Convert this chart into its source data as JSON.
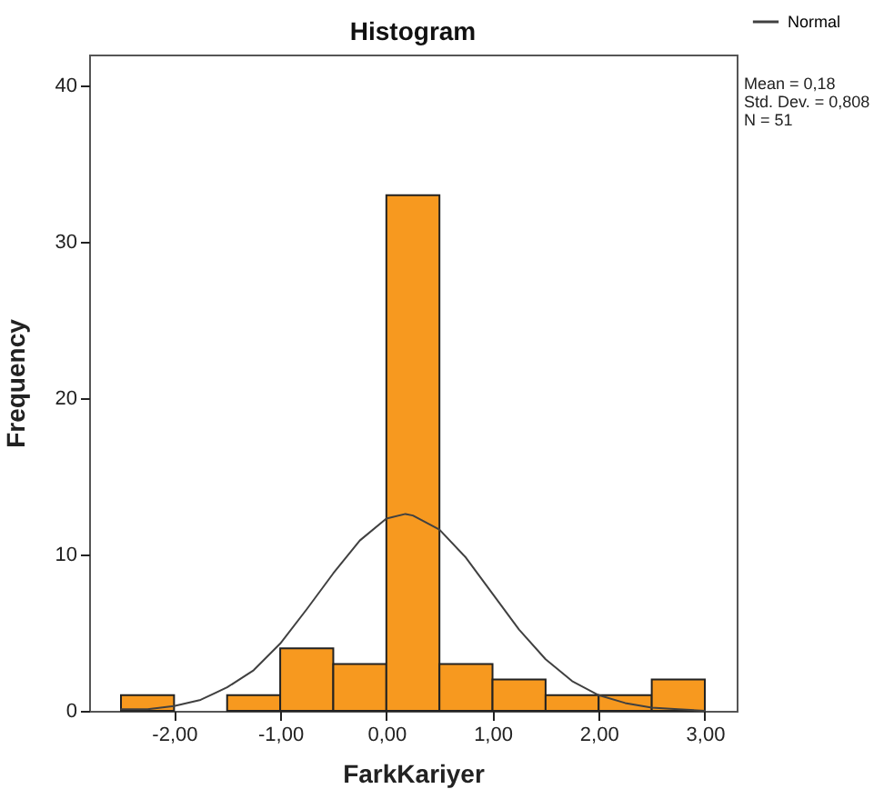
{
  "chart_data": {
    "type": "histogram",
    "title": "Histogram",
    "xlabel": "FarkKariyer",
    "ylabel": "Frequency",
    "bins": [
      -2.5,
      -2,
      -1.5,
      -1,
      -0.5,
      0,
      0.5,
      1,
      1.5,
      2,
      2.5,
      3
    ],
    "values": [
      1,
      0,
      1,
      4,
      3,
      33,
      3,
      2,
      1,
      1,
      2
    ],
    "color": "#f7991f",
    "series": [
      {
        "type": "line",
        "name": "Normal",
        "color": "#404040",
        "x": [
          -2.5,
          -2.25,
          -2,
          -1.75,
          -1.5,
          -1.25,
          -1,
          -0.75,
          -0.5,
          -0.25,
          0,
          0.18,
          0.25,
          0.5,
          0.75,
          1,
          1.25,
          1.5,
          1.75,
          2,
          2.25,
          2.5,
          2.75,
          3
        ],
        "values": [
          0.1,
          0.1,
          0.3,
          0.7,
          1.5,
          2.6,
          4.3,
          6.5,
          8.8,
          10.9,
          12.3,
          12.6,
          12.5,
          11.6,
          9.8,
          7.5,
          5.2,
          3.3,
          1.9,
          1.0,
          0.5,
          0.2,
          0.1,
          0
        ]
      }
    ],
    "xlim": [
      -2.8,
      3.3
    ],
    "xticks": [
      {
        "value": -2,
        "label": "-2,00"
      },
      {
        "value": -1,
        "label": "-1,00"
      },
      {
        "value": 0,
        "label": "0,00"
      },
      {
        "value": 1,
        "label": "1,00"
      },
      {
        "value": 2,
        "label": "2,00"
      },
      {
        "value": 3,
        "label": "3,00"
      }
    ],
    "ylim": [
      0,
      42
    ],
    "yticks": [
      0,
      10,
      20,
      30,
      40
    ],
    "grid": false,
    "legend": "top right",
    "marker": "none",
    "line_style": "solid",
    "annotations": [
      "Mean = 0,18",
      "Std. Dev. = 0,808",
      "N = 51"
    ]
  }
}
